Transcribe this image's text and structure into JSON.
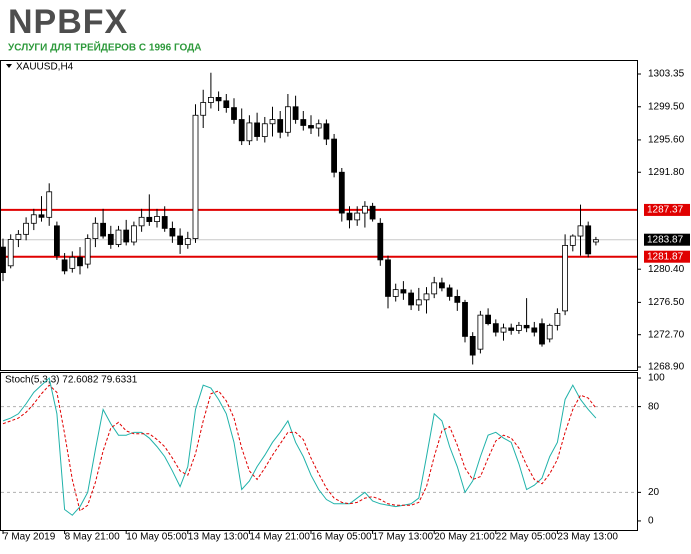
{
  "logo": {
    "name": "NPBFX",
    "tagline": "УСЛУГИ ДЛЯ ТРЕЙДЕРОВ С 1996 ГОДА"
  },
  "chart_data": [
    {
      "type": "candlestick",
      "title": "XAUUSD,H4",
      "up_color": "#ffffff",
      "down_color": "#000000",
      "open": [
        1283,
        1280.8,
        1283.9,
        1284.5,
        1285.8,
        1286.8,
        1286.5,
        1285.5,
        1281.5,
        1280.5,
        1281.8,
        1281,
        1284,
        1285.8,
        1284.5,
        1283.3,
        1285,
        1283.6,
        1285.5,
        1286.5,
        1286,
        1286.6,
        1285.2,
        1284.3,
        1283.3,
        1284,
        1298.5,
        1300,
        1300.6,
        1300.2,
        1299.4,
        1298,
        1295.5,
        1297.6,
        1296,
        1297.5,
        1298,
        1296.5,
        1299.5,
        1298,
        1297.3,
        1297,
        1297.5,
        1295.7,
        1291.8,
        1287,
        1286.2,
        1287,
        1287.8,
        1285.8,
        1281.5,
        1277.2,
        1278,
        1277.6,
        1276.2,
        1276.8,
        1277.5,
        1278.8,
        1278.2,
        1277.2,
        1276.5,
        1272.5,
        1271,
        1275,
        1274,
        1273,
        1273.5,
        1273.2,
        1273.8,
        1273.5,
        1274,
        1272.2,
        1273.8,
        1275.5,
        1283.2,
        1284.3,
        1285.5,
        1283.6
      ],
      "high": [
        1284,
        1284.5,
        1285,
        1286.5,
        1287.5,
        1289,
        1290.5,
        1286,
        1282.3,
        1282.5,
        1283,
        1284.5,
        1286.5,
        1287.5,
        1285.5,
        1285.5,
        1286.2,
        1286,
        1287.5,
        1289.2,
        1287.5,
        1287.8,
        1286,
        1285.2,
        1284.8,
        1299.8,
        1301.5,
        1303.5,
        1301.3,
        1301,
        1300.5,
        1299.3,
        1298.5,
        1298.8,
        1298.3,
        1299.5,
        1299,
        1301,
        1300.8,
        1299,
        1298.5,
        1298,
        1298,
        1296.3,
        1292.3,
        1287.8,
        1287.8,
        1288.4,
        1288.2,
        1286.4,
        1282,
        1278.7,
        1279,
        1278,
        1278.2,
        1278.3,
        1279.5,
        1279.4,
        1278.6,
        1278,
        1276.8,
        1273,
        1275.5,
        1275.8,
        1274.5,
        1274,
        1274,
        1274.2,
        1277,
        1274.2,
        1274.6,
        1274,
        1275.8,
        1284.5,
        1284.5,
        1288,
        1286,
        1284.2
      ],
      "low": [
        1279,
        1280.5,
        1283,
        1283.8,
        1285,
        1286,
        1285.5,
        1281.5,
        1279.8,
        1280,
        1279.8,
        1280.5,
        1283,
        1284,
        1282.8,
        1283,
        1283.2,
        1283.2,
        1284.8,
        1285.5,
        1285.3,
        1284.8,
        1283.5,
        1282.2,
        1282.8,
        1283.5,
        1297,
        1299.3,
        1299,
        1298.8,
        1297.5,
        1295,
        1295,
        1295.5,
        1295.3,
        1296,
        1295.8,
        1296,
        1297.5,
        1296.7,
        1296.3,
        1296,
        1295,
        1291.2,
        1286,
        1285.2,
        1285.5,
        1285.3,
        1286,
        1280.8,
        1275.8,
        1276.6,
        1276.8,
        1275.6,
        1275.5,
        1275.2,
        1277,
        1277.8,
        1276.7,
        1275.5,
        1271.8,
        1269.2,
        1270.5,
        1273.8,
        1272.5,
        1272,
        1272.7,
        1272.8,
        1273,
        1272.5,
        1271.3,
        1271.8,
        1273.2,
        1275,
        1282.5,
        1282,
        1281.8,
        1283.2
      ],
      "close": [
        1280,
        1283.9,
        1284.5,
        1285.8,
        1286.8,
        1286.5,
        1289.5,
        1282,
        1280.2,
        1281.8,
        1280.8,
        1284,
        1285.8,
        1284.3,
        1283.3,
        1285,
        1283.6,
        1285.5,
        1286.5,
        1286,
        1286.6,
        1285.2,
        1284.3,
        1283.3,
        1284,
        1298.5,
        1300,
        1300.6,
        1300.2,
        1299.4,
        1298,
        1295.5,
        1297.6,
        1296,
        1297.5,
        1298,
        1296.5,
        1299.5,
        1298,
        1297.3,
        1297,
        1297.5,
        1295.7,
        1291.8,
        1287,
        1286.2,
        1287,
        1287.8,
        1286.3,
        1281.5,
        1277.2,
        1278,
        1277.6,
        1276.2,
        1276.8,
        1277.5,
        1278.8,
        1278.2,
        1277.2,
        1276.5,
        1272.5,
        1270.3,
        1275,
        1274,
        1273,
        1273.5,
        1273.2,
        1273.8,
        1273.5,
        1273,
        1271.6,
        1273.8,
        1275.2,
        1283.2,
        1284.3,
        1285.5,
        1282.2,
        1283.87
      ],
      "ylim": [
        1268.55,
        1304.88
      ],
      "yticks": [
        1303.35,
        {
          "value": 1299.5,
          "label": "1299.50"
        },
        {
          "value": 1295.6,
          "label": "1295.60"
        },
        {
          "value": 1291.8,
          "label": "1291.80"
        },
        {
          "value": 1280.4,
          "label": "1280.40"
        },
        {
          "value": 1276.5,
          "label": "1276.50"
        },
        {
          "value": 1272.7,
          "label": "1272.70"
        },
        {
          "value": 1268.9,
          "label": "1268.90"
        }
      ],
      "hlines": [
        {
          "value": 1287.37,
          "color": "#e00000",
          "label_color": "#e00000"
        },
        {
          "value": 1283.87,
          "color": "#c8c8c8",
          "label_color": "#000000"
        },
        {
          "value": 1281.87,
          "color": "#e00000",
          "label_color": "#e00000"
        }
      ]
    },
    {
      "type": "line",
      "title": "Stoch(5,3,3) 72.6082 79.6331",
      "categories": [
        "7 May 2019",
        null,
        null,
        null,
        null,
        null,
        null,
        null,
        "8 May 21:00",
        null,
        null,
        null,
        null,
        null,
        null,
        null,
        "10 May 05:00",
        null,
        null,
        null,
        null,
        null,
        null,
        null,
        "13 May 13:00",
        null,
        null,
        null,
        null,
        null,
        null,
        null,
        "14 May 21:00",
        null,
        null,
        null,
        null,
        null,
        null,
        null,
        "16 May 05:00",
        null,
        null,
        null,
        null,
        null,
        null,
        null,
        "17 May 13:00",
        null,
        null,
        null,
        null,
        null,
        null,
        null,
        "20 May 21:00",
        null,
        null,
        null,
        null,
        null,
        null,
        null,
        "22 May 05:00",
        null,
        null,
        null,
        null,
        null,
        null,
        null,
        "23 May 13:00",
        null,
        null,
        null,
        null,
        null
      ],
      "series": [
        {
          "color": "#20b2aa",
          "dash": false,
          "values": [
            70,
            72,
            75,
            82,
            90,
            95,
            100,
            75,
            8,
            4,
            10,
            20,
            50,
            78,
            68,
            60,
            60,
            62,
            62,
            58,
            52,
            45,
            35,
            24,
            38,
            78,
            95,
            93,
            85,
            75,
            55,
            22,
            28,
            38,
            46,
            55,
            62,
            70,
            55,
            45,
            32,
            22,
            15,
            12,
            12,
            12,
            16,
            20,
            14,
            12,
            11,
            10,
            11,
            12,
            16,
            45,
            75,
            70,
            52,
            38,
            20,
            28,
            45,
            60,
            62,
            58,
            55,
            40,
            22,
            25,
            30,
            45,
            55,
            85,
            95,
            85,
            78,
            72
          ]
        },
        {
          "color": "#e00000",
          "dash": true,
          "values": [
            68,
            70,
            72,
            76,
            82,
            89,
            95,
            90,
            61,
            29,
            7,
            11,
            27,
            49,
            65,
            69,
            63,
            61,
            61,
            61,
            57,
            52,
            44,
            35,
            32,
            47,
            70,
            89,
            91,
            84,
            72,
            51,
            35,
            29,
            37,
            46,
            54,
            62,
            62,
            57,
            44,
            33,
            23,
            16,
            13,
            12,
            13,
            16,
            17,
            15,
            12,
            11,
            11,
            11,
            13,
            24,
            45,
            63,
            66,
            53,
            37,
            29,
            31,
            44,
            56,
            60,
            58,
            51,
            39,
            29,
            26,
            33,
            43,
            62,
            78,
            88,
            86,
            79
          ]
        }
      ],
      "ylim": [
        -6.34,
        103.52
      ],
      "yticks": [
        100,
        80,
        20,
        0
      ]
    }
  ]
}
